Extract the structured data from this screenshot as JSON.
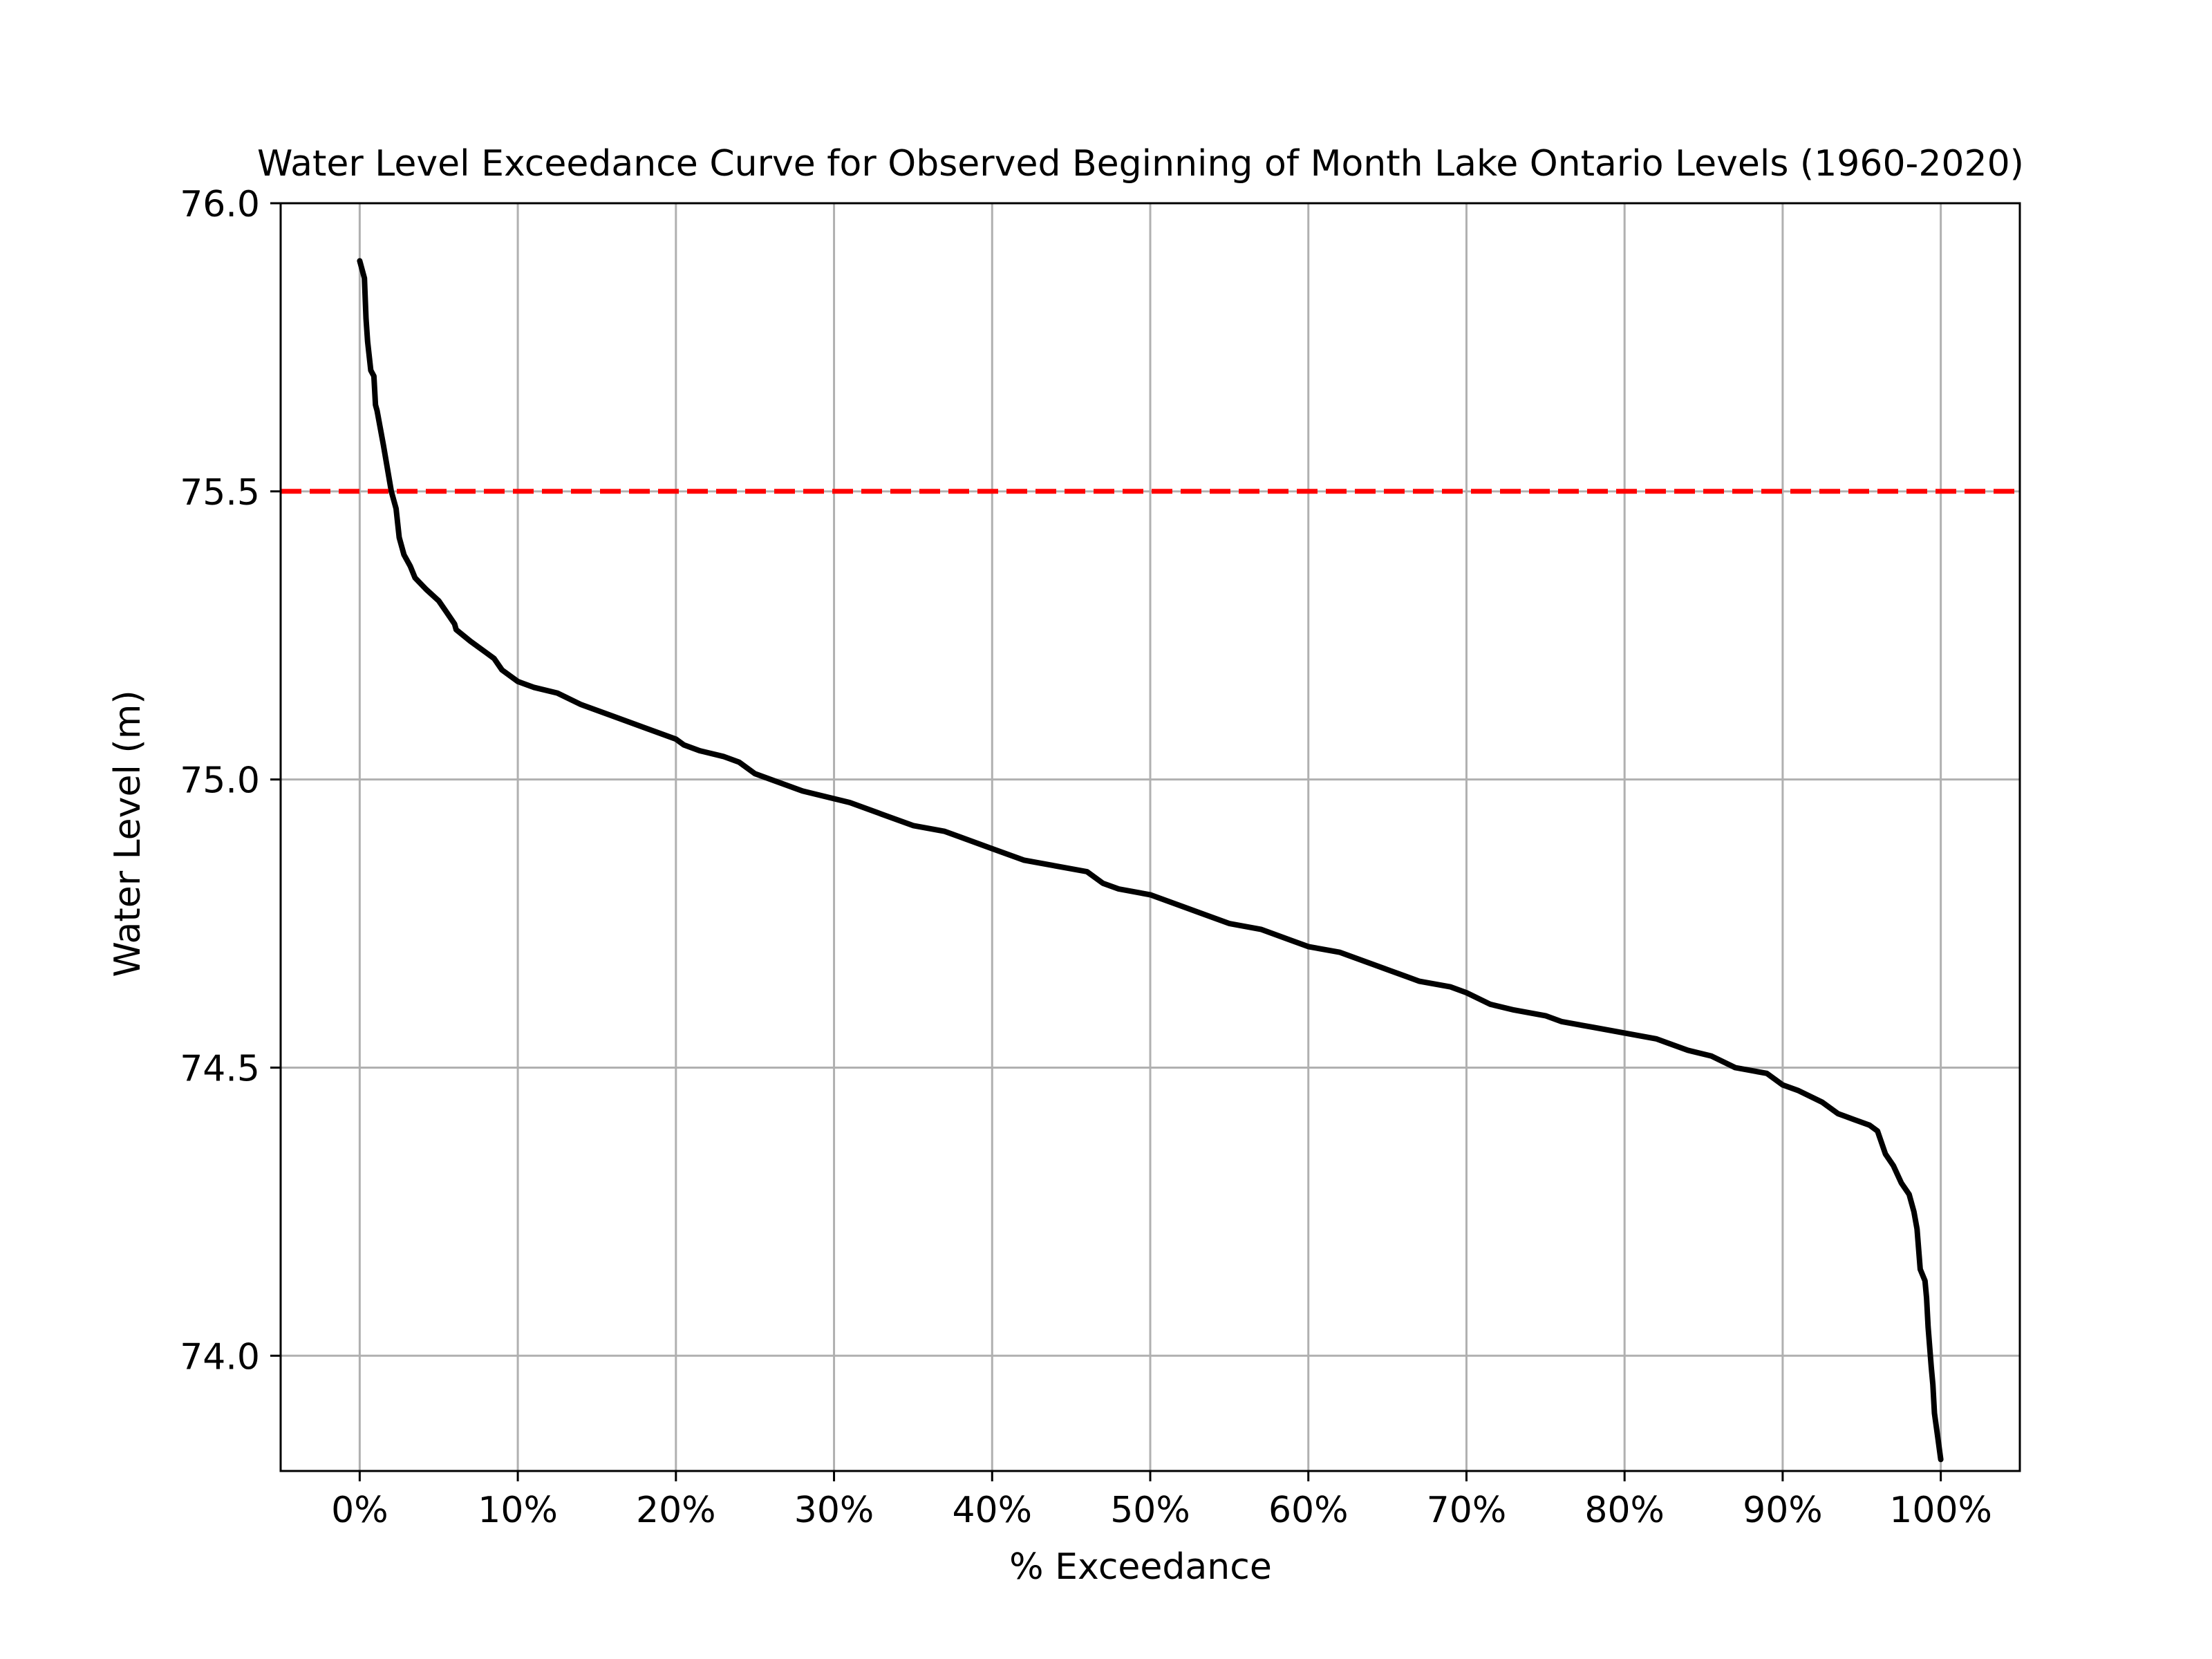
{
  "colors": {
    "curve": "#000000",
    "threshold": "#ff0000",
    "grid": "#b0b0b0",
    "frame": "#000000",
    "background": "#ffffff"
  },
  "chart_data": {
    "type": "line",
    "title": "Water Level Exceedance Curve for Observed Beginning of Month Lake Ontario Levels (1960-2020)",
    "xlabel": "% Exceedance",
    "ylabel": "Water Level (m)",
    "xlim": [
      -5,
      105
    ],
    "ylim": [
      73.8,
      76.0
    ],
    "grid": true,
    "x_ticks": [
      0,
      10,
      20,
      30,
      40,
      50,
      60,
      70,
      80,
      90,
      100
    ],
    "x_tick_labels": [
      "0%",
      "10%",
      "20%",
      "30%",
      "40%",
      "50%",
      "60%",
      "70%",
      "80%",
      "90%",
      "100%"
    ],
    "y_ticks": [
      74.0,
      74.5,
      75.0,
      75.5,
      76.0
    ],
    "y_tick_labels": [
      "74.0",
      "74.5",
      "75.0",
      "75.5",
      "76.0"
    ],
    "series": [
      {
        "style": "solid",
        "color": "#000000",
        "x": [
          0,
          0.3,
          0.4,
          0.5,
          0.7,
          0.9,
          1.0,
          1.1,
          1.3,
          1.5,
          2.0,
          2.3,
          2.5,
          2.8,
          3.2,
          3.5,
          4.2,
          5.0,
          5.5,
          6.0,
          6.1,
          7.0,
          8.0,
          8.5,
          9.0,
          10.0,
          11.0,
          12.5,
          14.0,
          16.0,
          18.0,
          20.0,
          20.5,
          21.5,
          23.0,
          24.0,
          25.0,
          26.0,
          28.0,
          31.0,
          33.0,
          35.0,
          37.0,
          38.0,
          40.0,
          42.0,
          44.0,
          46.0,
          47.0,
          48.0,
          50.0,
          52.0,
          53.0,
          55.0,
          57.0,
          59.0,
          60.0,
          62.0,
          64.0,
          65.0,
          67.0,
          69.0,
          70.0,
          71.5,
          73.0,
          75.0,
          76.0,
          78.0,
          80.0,
          82.0,
          84.0,
          85.5,
          87.0,
          89.0,
          90.0,
          91.0,
          92.5,
          93.5,
          94.5,
          95.5,
          96.0,
          96.5,
          97.0,
          97.5,
          98.0,
          98.3,
          98.5,
          98.7,
          99.0,
          99.1,
          99.2,
          99.4,
          99.5,
          99.6,
          99.8,
          100.0
        ],
        "y": [
          75.9,
          75.87,
          75.8,
          75.76,
          75.71,
          75.7,
          75.65,
          75.64,
          75.61,
          75.58,
          75.5,
          75.47,
          75.42,
          75.39,
          75.37,
          75.35,
          75.33,
          75.31,
          75.29,
          75.27,
          75.26,
          75.24,
          75.22,
          75.21,
          75.19,
          75.17,
          75.16,
          75.15,
          75.13,
          75.11,
          75.09,
          75.07,
          75.06,
          75.05,
          75.04,
          75.03,
          75.01,
          75.0,
          74.98,
          74.96,
          74.94,
          74.92,
          74.91,
          74.9,
          74.88,
          74.86,
          74.85,
          74.84,
          74.82,
          74.81,
          74.8,
          74.78,
          74.77,
          74.75,
          74.74,
          74.72,
          74.71,
          74.7,
          74.68,
          74.67,
          74.65,
          74.64,
          74.63,
          74.61,
          74.6,
          74.59,
          74.58,
          74.57,
          74.56,
          74.55,
          74.53,
          74.52,
          74.5,
          74.49,
          74.47,
          74.46,
          74.44,
          74.42,
          74.41,
          74.4,
          74.39,
          74.35,
          74.33,
          74.3,
          74.28,
          74.25,
          74.22,
          74.15,
          74.13,
          74.1,
          74.05,
          73.98,
          73.95,
          73.9,
          73.86,
          73.82
        ]
      },
      {
        "style": "dashed",
        "color": "#ff0000",
        "x": [
          -5,
          105
        ],
        "y": [
          75.5,
          75.5
        ]
      }
    ]
  }
}
